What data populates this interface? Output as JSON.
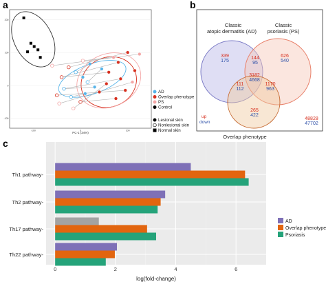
{
  "panels": {
    "a": "a",
    "b": "b",
    "c": "c"
  },
  "colors": {
    "ad": "#56b4e9",
    "overlap": "#d7301f",
    "ps": "#f4a6a6",
    "control": "#000000",
    "venn_ad": "#7c7cc6",
    "venn_ps": "#e8806a",
    "venn_overlap": "#c8703a",
    "up": "#d7301f",
    "down": "#2c4fa8",
    "bar_ad": "#7e70b7",
    "bar_overlap": "#e2650f",
    "bar_psoriasis": "#25a37a",
    "bar_th17_ad": "#a3a3a3"
  },
  "chart_data": [
    {
      "type": "scatter",
      "panel": "a",
      "title": "",
      "xlabel": "PC-1 (34%)",
      "ylabel": "",
      "yticks": [
        "200",
        "100",
        "0",
        "-100"
      ],
      "xticks": [
        "-100",
        "0",
        "100"
      ],
      "xlim": [
        -150,
        150
      ],
      "ylim": [
        -130,
        230
      ],
      "legend_position": "right",
      "legend_groups": [
        {
          "label": "AD",
          "marker": "circle",
          "fill": "ad"
        },
        {
          "label": "Overlap phenotype",
          "marker": "circle",
          "fill": "overlap"
        },
        {
          "label": "PS",
          "marker": "circle",
          "fill": "ps"
        },
        {
          "label": "Control",
          "marker": "circle",
          "fill": "control"
        }
      ],
      "legend_tissue": [
        {
          "label": "Lesional skin",
          "marker": "filled-circle"
        },
        {
          "label": "Nonlesional skin",
          "marker": "open-circle"
        },
        {
          "label": "Normal skin",
          "marker": "square"
        }
      ],
      "ellipses": [
        {
          "group": "control",
          "cx": -100,
          "cy": 140,
          "rx": 40,
          "ry": 90,
          "angle": -28
        },
        {
          "group": "ad",
          "cx": 25,
          "cy": 20,
          "rx": 75,
          "ry": 45,
          "angle": -20
        },
        {
          "group": "overlap",
          "cx": 60,
          "cy": 10,
          "rx": 60,
          "ry": 75,
          "angle": -25
        },
        {
          "group": "ps",
          "cx": 60,
          "cy": 15,
          "rx": 70,
          "ry": 80,
          "angle": -25
        }
      ],
      "points": {
        "control": [
          {
            "x": -120,
            "y": 205,
            "tissue": "normal"
          },
          {
            "x": -105,
            "y": 128,
            "tissue": "normal"
          },
          {
            "x": -98,
            "y": 118,
            "tissue": "normal"
          },
          {
            "x": -112,
            "y": 102,
            "tissue": "normal"
          },
          {
            "x": -90,
            "y": 108,
            "tissue": "normal"
          },
          {
            "x": -85,
            "y": 85,
            "tissue": "normal"
          }
        ],
        "ad": [
          {
            "x": 20,
            "y": 65,
            "tissue": "lesional"
          },
          {
            "x": 45,
            "y": 50,
            "tissue": "lesional"
          },
          {
            "x": 5,
            "y": 25,
            "tissue": "lesional"
          },
          {
            "x": 30,
            "y": -5,
            "tissue": "lesional"
          },
          {
            "x": 10,
            "y": -25,
            "tissue": "lesional"
          },
          {
            "x": -10,
            "y": 40,
            "tissue": "nonlesional"
          },
          {
            "x": -35,
            "y": -10,
            "tissue": "nonlesional"
          },
          {
            "x": -20,
            "y": -35,
            "tissue": "nonlesional"
          },
          {
            "x": 15,
            "y": 10,
            "tissue": "nonlesional"
          }
        ],
        "overlap": [
          {
            "x": 100,
            "y": 100,
            "tissue": "lesional"
          },
          {
            "x": 80,
            "y": 70,
            "tissue": "lesional"
          },
          {
            "x": 60,
            "y": 40,
            "tissue": "lesional"
          },
          {
            "x": 85,
            "y": 20,
            "tissue": "lesional"
          },
          {
            "x": 55,
            "y": 5,
            "tissue": "lesional"
          },
          {
            "x": 95,
            "y": -15,
            "tissue": "lesional"
          },
          {
            "x": 75,
            "y": -40,
            "tissue": "lesional"
          },
          {
            "x": 40,
            "y": -20,
            "tissue": "lesional"
          },
          {
            "x": 115,
            "y": 45,
            "tissue": "lesional"
          },
          {
            "x": -25,
            "y": 55,
            "tissue": "nonlesional"
          },
          {
            "x": -40,
            "y": 25,
            "tissue": "nonlesional"
          },
          {
            "x": 0,
            "y": -50,
            "tissue": "nonlesional"
          },
          {
            "x": -50,
            "y": -30,
            "tissue": "nonlesional"
          }
        ],
        "ps": [
          {
            "x": 125,
            "y": 95,
            "tissue": "lesional"
          },
          {
            "x": 110,
            "y": 10,
            "tissue": "lesional"
          },
          {
            "x": 70,
            "y": 85,
            "tissue": "lesional"
          },
          {
            "x": -60,
            "y": 60,
            "tissue": "nonlesional"
          },
          {
            "x": -45,
            "y": -55,
            "tissue": "nonlesional"
          },
          {
            "x": 5,
            "y": 75,
            "tissue": "nonlesional"
          },
          {
            "x": -15,
            "y": -70,
            "tissue": "nonlesional"
          }
        ]
      },
      "links": [
        [
          {
            "x": -10,
            "y": 40
          },
          {
            "x": 20,
            "y": 65
          }
        ],
        [
          {
            "x": -35,
            "y": -10
          },
          {
            "x": 30,
            "y": -5
          }
        ],
        [
          {
            "x": -20,
            "y": -35
          },
          {
            "x": 10,
            "y": -25
          }
        ],
        [
          {
            "x": 15,
            "y": 10
          },
          {
            "x": 45,
            "y": 50
          }
        ],
        [
          {
            "x": -25,
            "y": 55
          },
          {
            "x": 100,
            "y": 100
          }
        ],
        [
          {
            "x": -40,
            "y": 25
          },
          {
            "x": 80,
            "y": 70
          }
        ],
        [
          {
            "x": 0,
            "y": -50
          },
          {
            "x": 75,
            "y": -40
          }
        ],
        [
          {
            "x": -50,
            "y": -30
          },
          {
            "x": 95,
            "y": -15
          }
        ],
        [
          {
            "x": -60,
            "y": 60
          },
          {
            "x": 125,
            "y": 95
          }
        ],
        [
          {
            "x": -45,
            "y": -55
          },
          {
            "x": 110,
            "y": 10
          }
        ],
        [
          {
            "x": 5,
            "y": 75
          },
          {
            "x": 70,
            "y": 85
          }
        ],
        [
          {
            "x": -15,
            "y": -70
          },
          {
            "x": 55,
            "y": 5
          }
        ],
        [
          {
            "x": -40,
            "y": 25
          },
          {
            "x": 60,
            "y": 40
          }
        ],
        [
          {
            "x": -35,
            "y": -10
          },
          {
            "x": 85,
            "y": 20
          }
        ]
      ]
    },
    {
      "type": "venn",
      "panel": "b",
      "sets": [
        {
          "label_line1": "Classic",
          "label_line2": "atopic dermatitis (AD)"
        },
        {
          "label_line1": "Classic",
          "label_line2": "psoriasis (PS)"
        },
        {
          "label_line1": "Overlap phenotype",
          "label_line2": ""
        }
      ],
      "regions": [
        {
          "region": "AD only",
          "up": "339",
          "down": "175"
        },
        {
          "region": "AD and PS",
          "up": "144",
          "down": "95"
        },
        {
          "region": "PS only",
          "up": "626",
          "down": "540"
        },
        {
          "region": "AD, PS and Overlap",
          "up": "3182",
          "down": "4668"
        },
        {
          "region": "AD and Overlap",
          "up": "111",
          "down": "112"
        },
        {
          "region": "PS and Overlap",
          "up": "1170",
          "down": "963"
        },
        {
          "region": "Overlap only",
          "up": "265",
          "down": "422"
        },
        {
          "region": "None",
          "up": "48828",
          "down": "47702"
        }
      ],
      "legend": {
        "up": "up",
        "down": "down"
      }
    },
    {
      "type": "bar",
      "panel": "c",
      "orientation": "horizontal",
      "xlabel": "log(fold-change)",
      "ylabel": "",
      "xlim": [
        -0.3,
        7.0
      ],
      "xticks": [
        "0",
        "2",
        "4",
        "6"
      ],
      "grid": true,
      "legend_position": "right",
      "categories": [
        "Th1 pathway-",
        "Th2 pathway-",
        "Th17 pathway-",
        "Th22 pathway-"
      ],
      "series": [
        {
          "name": "AD",
          "values": [
            4.5,
            3.65,
            1.45,
            2.05
          ]
        },
        {
          "name": "Overlap phenotype",
          "values": [
            6.3,
            3.5,
            3.05,
            1.98
          ]
        },
        {
          "name": "Psoriasis",
          "values": [
            6.42,
            3.4,
            3.35,
            1.68
          ]
        }
      ]
    }
  ]
}
